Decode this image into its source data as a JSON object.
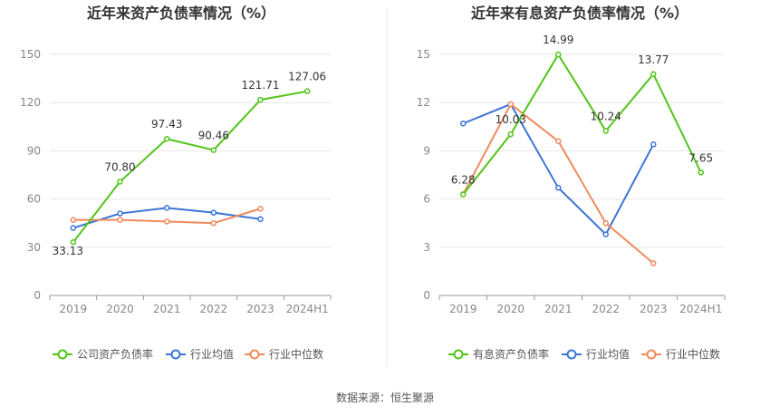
{
  "source_text": "数据来源：恒生聚源",
  "chart_data": [
    {
      "type": "line",
      "title": "近年来资产负债率情况（%）",
      "categories": [
        "2019",
        "2020",
        "2021",
        "2022",
        "2023",
        "2024H1"
      ],
      "ylim": [
        0,
        150
      ],
      "yticks": [
        "0",
        "30",
        "60",
        "90",
        "120",
        "150"
      ],
      "grid": true,
      "legend_position": "bottom",
      "series": [
        {
          "name": "公司资产负债率",
          "color": "#52c41a",
          "values": [
            33.13,
            70.8,
            97.43,
            90.46,
            121.71,
            127.06
          ],
          "labels": [
            "33.13",
            "70.80",
            "97.43",
            "90.46",
            "121.71",
            "127.06"
          ]
        },
        {
          "name": "行业均值",
          "color": "#3b74d6",
          "values": [
            42.0,
            51.0,
            54.5,
            51.5,
            47.5,
            null
          ]
        },
        {
          "name": "行业中位数",
          "color": "#f08a5d",
          "values": [
            47.0,
            47.0,
            46.0,
            45.0,
            54.0,
            null
          ]
        }
      ]
    },
    {
      "type": "line",
      "title": "近年来有息资产负债率情况（%）",
      "categories": [
        "2019",
        "2020",
        "2021",
        "2022",
        "2023",
        "2024H1"
      ],
      "ylim": [
        0,
        15
      ],
      "yticks": [
        "0",
        "3",
        "6",
        "9",
        "12",
        "15"
      ],
      "grid": true,
      "legend_position": "bottom",
      "series": [
        {
          "name": "有息资产负债率",
          "color": "#52c41a",
          "values": [
            6.28,
            10.03,
            14.99,
            10.24,
            13.77,
            7.65
          ],
          "labels": [
            "6.28",
            "10.03",
            "14.99",
            "10.24",
            "13.77",
            "7.65"
          ]
        },
        {
          "name": "行业均值",
          "color": "#3b74d6",
          "values": [
            10.7,
            11.9,
            6.7,
            3.8,
            9.4,
            null
          ]
        },
        {
          "name": "行业中位数",
          "color": "#f08a5d",
          "values": [
            6.3,
            11.9,
            9.6,
            4.5,
            2.0,
            null
          ]
        }
      ]
    }
  ]
}
